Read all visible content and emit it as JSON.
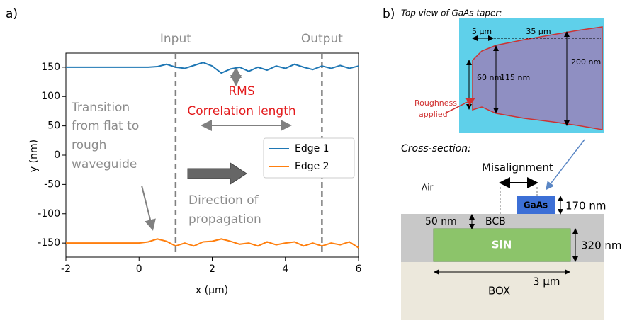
{
  "chart_data": {
    "type": "line",
    "panel_label": "a)",
    "x_label": "x (µm)",
    "y_label": "y (nm)",
    "xlim": [
      -2,
      6
    ],
    "xticks": [
      -2,
      0,
      2,
      4,
      6
    ],
    "ylim": [
      -174,
      174
    ],
    "yticks": [
      150,
      100,
      50,
      0,
      -50,
      -100,
      -150
    ],
    "legend": "right",
    "x": [
      -2,
      -1.75,
      -1.5,
      -1.25,
      -1,
      -0.75,
      -0.5,
      -0.25,
      0,
      0.25,
      0.5,
      0.75,
      1,
      1.25,
      1.5,
      1.75,
      2,
      2.25,
      2.5,
      2.75,
      3,
      3.25,
      3.5,
      3.75,
      4,
      4.25,
      4.5,
      4.75,
      5,
      5.25,
      5.5,
      5.75,
      6
    ],
    "series": [
      {
        "name": "Edge 1",
        "color": "#1f77b4",
        "values": [
          150,
          150,
          150,
          150,
          150,
          150,
          150,
          150,
          150,
          150,
          151,
          155,
          150,
          148,
          153,
          158,
          152,
          140,
          147,
          150,
          143,
          150,
          145,
          152,
          148,
          155,
          150,
          146,
          152,
          148,
          153,
          148,
          152
        ]
      },
      {
        "name": "Edge 2",
        "color": "#ff7f0e",
        "values": [
          -150,
          -150,
          -150,
          -150,
          -150,
          -150,
          -150,
          -150,
          -150,
          -148,
          -143,
          -147,
          -155,
          -150,
          -155,
          -148,
          -147,
          -143,
          -147,
          -152,
          -150,
          -155,
          -148,
          -153,
          -150,
          -148,
          -155,
          -150,
          -155,
          -150,
          -153,
          -148,
          -158
        ]
      }
    ],
    "vlines": [
      {
        "x": 1,
        "label": "Input"
      },
      {
        "x": 5,
        "label": "Output"
      }
    ],
    "annotations": {
      "rms": "RMS",
      "correlation": "Correlation length",
      "transition": [
        "Transition",
        "from flat to",
        "rough",
        "waveguide"
      ],
      "direction": [
        "Direction of",
        "propagation"
      ]
    }
  },
  "panel_b": {
    "label": "b)",
    "top_view_title": "Top view of GaAs taper:",
    "dims": {
      "len1": "5 µm",
      "len2": "35 µm",
      "w_out": "200 nm",
      "w_in": "60 nm",
      "w_mid": "115 nm"
    },
    "roughness": [
      "Roughness",
      "applied"
    ],
    "cross_section_title": "Cross-section:",
    "misalignment": "Misalignment",
    "air": "Air",
    "gaas": "GaAs",
    "gaas_h": "170 nm",
    "bcb_gap": "50 nm",
    "bcb": "BCB",
    "sin": "SiN",
    "sin_h": "320 nm",
    "sin_w": "3 µm",
    "box": "BOX"
  }
}
